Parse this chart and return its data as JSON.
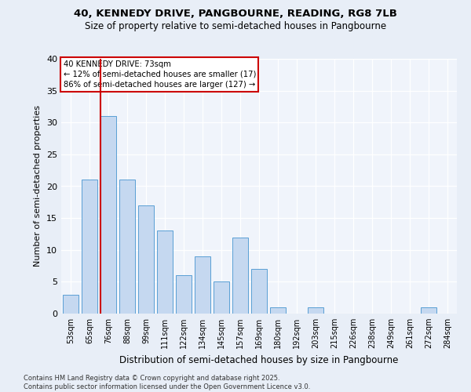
{
  "title1": "40, KENNEDY DRIVE, PANGBOURNE, READING, RG8 7LB",
  "title2": "Size of property relative to semi-detached houses in Pangbourne",
  "xlabel": "Distribution of semi-detached houses by size in Pangbourne",
  "ylabel": "Number of semi-detached properties",
  "categories": [
    "53sqm",
    "65sqm",
    "76sqm",
    "88sqm",
    "99sqm",
    "111sqm",
    "122sqm",
    "134sqm",
    "145sqm",
    "157sqm",
    "169sqm",
    "180sqm",
    "192sqm",
    "203sqm",
    "215sqm",
    "226sqm",
    "238sqm",
    "249sqm",
    "261sqm",
    "272sqm",
    "284sqm"
  ],
  "values": [
    3,
    21,
    31,
    21,
    17,
    13,
    6,
    9,
    5,
    12,
    7,
    1,
    0,
    1,
    0,
    0,
    0,
    0,
    0,
    1,
    0
  ],
  "bar_color": "#c5d8f0",
  "bar_edge_color": "#5a9fd4",
  "vline_index": 2,
  "vline_color": "#cc0000",
  "annotation_title": "40 KENNEDY DRIVE: 73sqm",
  "annotation_line1": "← 12% of semi-detached houses are smaller (17)",
  "annotation_line2": "86% of semi-detached houses are larger (127) →",
  "annotation_box_color": "#ffffff",
  "annotation_box_edge": "#cc0000",
  "ylim": [
    0,
    40
  ],
  "yticks": [
    0,
    5,
    10,
    15,
    20,
    25,
    30,
    35,
    40
  ],
  "footer1": "Contains HM Land Registry data © Crown copyright and database right 2025.",
  "footer2": "Contains public sector information licensed under the Open Government Licence v3.0.",
  "bg_color": "#e8eef7",
  "plot_bg_color": "#f0f4fb"
}
